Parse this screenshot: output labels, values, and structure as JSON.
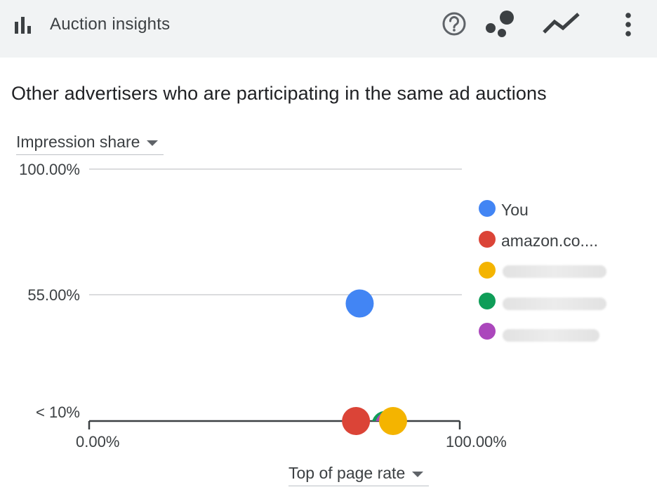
{
  "header": {
    "title": "Auction insights",
    "icons": [
      "bar-chart-icon",
      "help-icon",
      "bubble-chart-icon",
      "trend-line-icon",
      "more-vert-icon"
    ]
  },
  "subtitle": "Other advertisers who are participating in the same ad auctions",
  "y_selector": {
    "label": "Impression share"
  },
  "x_selector": {
    "label": "Top of page rate"
  },
  "colors": {
    "header_bg": "#f1f3f4",
    "you": "#4285f4",
    "amazon": "#db4437",
    "advertiser3": "#f4b400",
    "advertiser4": "#0f9d58",
    "advertiser5": "#ab47bc"
  },
  "chart_data": {
    "type": "scatter",
    "x_axis": {
      "ticks": [
        "0.00%",
        "100.00%"
      ],
      "range": [
        0,
        100
      ]
    },
    "y_axis": {
      "ticks": [
        "< 10%",
        "55.00%",
        "100.00%"
      ],
      "range": [
        10,
        100
      ]
    },
    "grid": true,
    "legend": {
      "position": "right"
    },
    "series": [
      {
        "name": "You",
        "color": "#4285f4",
        "x": 73,
        "y": 52
      },
      {
        "name": "amazon.co....",
        "color": "#db4437",
        "x": 72,
        "y": 10
      },
      {
        "name": "",
        "color": "#f4b400",
        "x": 82,
        "y": 10
      },
      {
        "name": "",
        "color": "#0f9d58",
        "x": 80,
        "y": 5
      },
      {
        "name": "",
        "color": "#ab47bc",
        "x": 81,
        "y": 5
      }
    ]
  }
}
